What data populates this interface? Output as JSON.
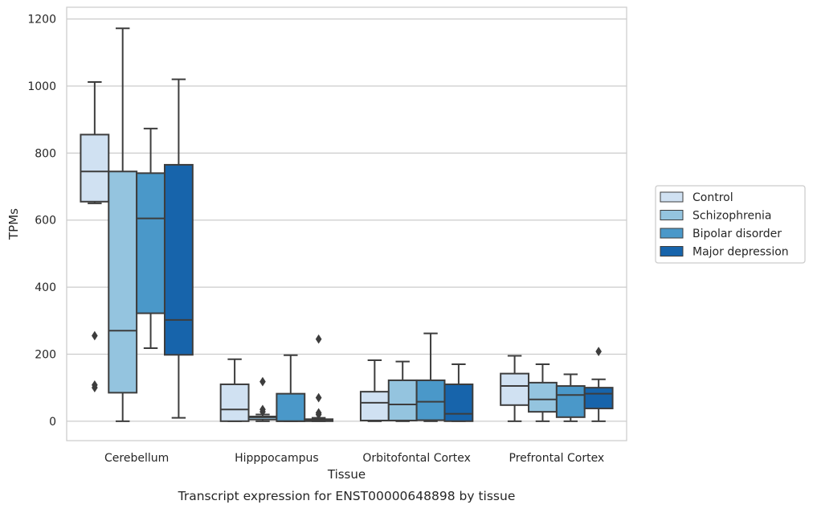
{
  "chart_data": {
    "type": "box",
    "title": "Transcript expression for ENST00000648898 by tissue",
    "xlabel": "Tissue",
    "ylabel": "TPMs",
    "ylim": [
      -58,
      1235
    ],
    "yticks": [
      0,
      200,
      400,
      600,
      800,
      1000,
      1200
    ],
    "grid": true,
    "legend_placement": "right",
    "categories": [
      "Cerebellum",
      "Hipppocampus",
      "Orbitofontal Cortex",
      "Prefrontal Cortex"
    ],
    "series": [
      {
        "name": "Control",
        "color": "#d0e1f2",
        "boxes": [
          {
            "whislo": 650,
            "q1": 655,
            "med": 745,
            "q3": 855,
            "whishi": 1012,
            "fliers": [
              255,
              100,
              108
            ]
          },
          {
            "whislo": 0,
            "q1": 0,
            "med": 35,
            "q3": 110,
            "whishi": 185,
            "fliers": []
          },
          {
            "whislo": 0,
            "q1": 2,
            "med": 55,
            "q3": 88,
            "whishi": 182,
            "fliers": []
          },
          {
            "whislo": 0,
            "q1": 48,
            "med": 105,
            "q3": 142,
            "whishi": 195,
            "fliers": []
          }
        ]
      },
      {
        "name": "Schizophrenia",
        "color": "#94c4df",
        "boxes": [
          {
            "whislo": 0,
            "q1": 85,
            "med": 270,
            "q3": 745,
            "whishi": 1172,
            "fliers": []
          },
          {
            "whislo": 0,
            "q1": 5,
            "med": 12,
            "q3": 14,
            "whishi": 20,
            "fliers": [
              118,
              35,
              28
            ]
          },
          {
            "whislo": 0,
            "q1": 2,
            "med": 50,
            "q3": 122,
            "whishi": 178,
            "fliers": []
          },
          {
            "whislo": 0,
            "q1": 28,
            "med": 65,
            "q3": 115,
            "whishi": 170,
            "fliers": []
          }
        ]
      },
      {
        "name": "Bipolar disorder",
        "color": "#4a98c9",
        "boxes": [
          {
            "whislo": 218,
            "q1": 322,
            "med": 605,
            "q3": 740,
            "whishi": 873,
            "fliers": []
          },
          {
            "whislo": 0,
            "q1": 0,
            "med": 0,
            "q3": 82,
            "whishi": 197,
            "fliers": []
          },
          {
            "whislo": 0,
            "q1": 3,
            "med": 58,
            "q3": 122,
            "whishi": 262,
            "fliers": []
          },
          {
            "whislo": 0,
            "q1": 12,
            "med": 78,
            "q3": 105,
            "whishi": 140,
            "fliers": []
          }
        ]
      },
      {
        "name": "Major depression",
        "color": "#1764ab",
        "boxes": [
          {
            "whislo": 10,
            "q1": 198,
            "med": 302,
            "q3": 765,
            "whishi": 1020,
            "fliers": []
          },
          {
            "whislo": 0,
            "q1": 0,
            "med": 3,
            "q3": 6,
            "whishi": 10,
            "fliers": [
              245,
              70,
              25,
              20
            ]
          },
          {
            "whislo": 0,
            "q1": 0,
            "med": 22,
            "q3": 110,
            "whishi": 170,
            "fliers": []
          },
          {
            "whislo": 0,
            "q1": 38,
            "med": 82,
            "q3": 100,
            "whishi": 125,
            "fliers": [
              208
            ]
          }
        ]
      }
    ]
  }
}
